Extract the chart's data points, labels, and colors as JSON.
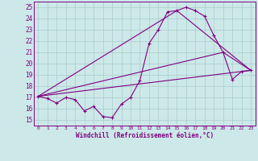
{
  "xlabel": "Windchill (Refroidissement éolien,°C)",
  "background_color": "#cce8e8",
  "line_color": "#800080",
  "grid_color": "#aacccc",
  "xlim": [
    -0.5,
    23.5
  ],
  "ylim": [
    14.5,
    25.5
  ],
  "yticks": [
    15,
    16,
    17,
    18,
    19,
    20,
    21,
    22,
    23,
    24,
    25
  ],
  "xticks": [
    0,
    1,
    2,
    3,
    4,
    5,
    6,
    7,
    8,
    9,
    10,
    11,
    12,
    13,
    14,
    15,
    16,
    17,
    18,
    19,
    20,
    21,
    22,
    23
  ],
  "curve1_x": [
    0,
    1,
    2,
    3,
    4,
    5,
    6,
    7,
    8,
    9,
    10,
    11,
    12,
    13,
    14,
    15,
    16,
    17,
    18,
    19,
    20,
    21,
    22,
    23
  ],
  "curve1_y": [
    17.1,
    16.9,
    16.5,
    17.0,
    16.8,
    15.8,
    16.2,
    15.3,
    15.2,
    16.4,
    17.0,
    18.5,
    21.8,
    23.0,
    24.6,
    24.7,
    25.0,
    24.7,
    24.2,
    22.5,
    21.0,
    18.6,
    19.3,
    19.4
  ],
  "line1_x": [
    0,
    23
  ],
  "line1_y": [
    17.1,
    19.4
  ],
  "line2_x": [
    0,
    15,
    23
  ],
  "line2_y": [
    17.1,
    24.7,
    19.4
  ],
  "line3_x": [
    0,
    20,
    23
  ],
  "line3_y": [
    17.1,
    21.0,
    19.4
  ]
}
